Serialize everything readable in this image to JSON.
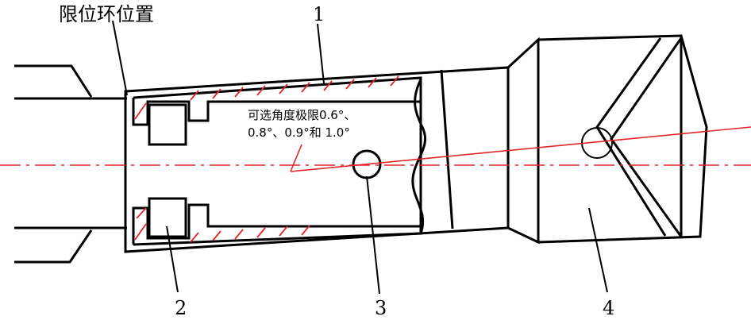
{
  "title_label": "限位环位置",
  "annotation_line1": "可选角度极限0.6°、",
  "annotation_line2": "0.8°、0.9°和 1.0°",
  "callouts": [
    "1",
    "2",
    "3",
    "4"
  ],
  "colors": {
    "outline": "#000000",
    "axis_and_hatch": "#e0262b",
    "background": "#ffffff"
  }
}
